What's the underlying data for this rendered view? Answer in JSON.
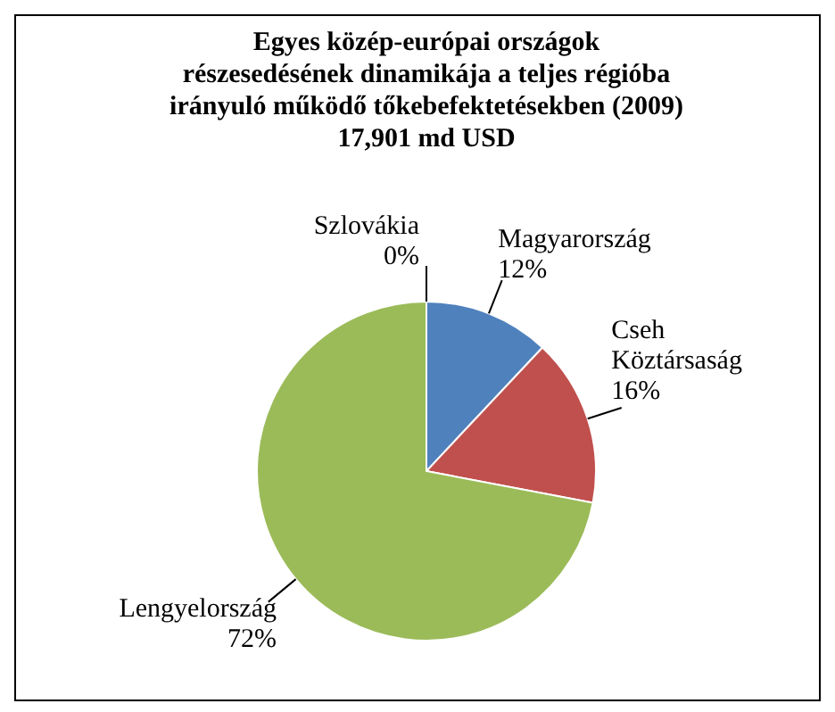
{
  "chart_data": {
    "type": "pie",
    "title": "Egyes közép-európai  országok részesedésének dinamikája  a teljes régióba irányuló  működő tőkebefektetésekben (2009)",
    "subtitle": "17,901 md USD",
    "categories": [
      "Magyarország",
      "Cseh Köztársaság",
      "Lengyelország",
      "Szlovákia"
    ],
    "values": [
      12,
      16,
      72,
      0
    ],
    "value_labels": [
      "12%",
      "16%",
      "72%",
      "0%"
    ],
    "colors": [
      "#4f81bd",
      "#c0504d",
      "#9bbb59",
      "#8064a2"
    ]
  }
}
